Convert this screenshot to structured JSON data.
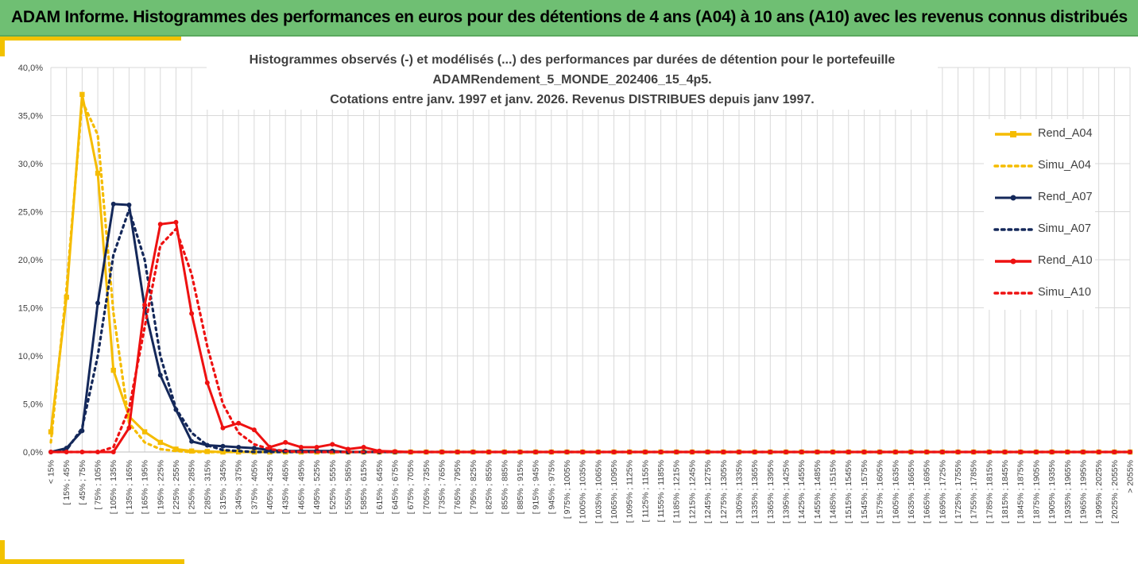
{
  "header": {
    "title": "ADAM Informe. Histogrammes des performances en euros pour des détentions de 4 ans (A04) à 10 ans (A10) avec les revenus connus distribués"
  },
  "colors": {
    "header_bg": "#6fbf73",
    "accent": "#f2c200",
    "A04": "#f5bc00",
    "A07": "#14285a",
    "A10": "#ee1111",
    "grid": "#d9d9d9"
  },
  "chart_data": {
    "type": "line",
    "title_lines": [
      "Histogrammes observés (-) et modélisés (...) des performances par durées de détention pour le portefeuille",
      "ADAMRendement_5_MONDE_202406_15_4p5.",
      "Cotations entre janv. 1997 et janv. 2026. Revenus DISTRIBUES depuis janv 1997."
    ],
    "ylim": [
      0,
      0.4
    ],
    "yticks": [
      "0,0%",
      "5,0%",
      "10,0%",
      "15,0%",
      "20,0%",
      "25,0%",
      "30,0%",
      "35,0%",
      "40,0%"
    ],
    "grid": true,
    "legend_position": "right",
    "categories": [
      "< 15%",
      "[ 15% ; 45%",
      "[ 45% ; 75%",
      "[ 75% ; 105%",
      "[ 105% ; 135%",
      "[ 135% ; 165%",
      "[ 165% ; 195%",
      "[ 195% ; 225%",
      "[ 225% ; 255%",
      "[ 255% ; 285%",
      "[ 285% ; 315%",
      "[ 315% ; 345%",
      "[ 345% ; 375%",
      "[ 375% ; 405%",
      "[ 405% ; 435%",
      "[ 435% ; 465%",
      "[ 465% ; 495%",
      "[ 495% ; 525%",
      "[ 525% ; 555%",
      "[ 555% ; 585%",
      "[ 585% ; 615%",
      "[ 615% ; 645%",
      "[ 645% ; 675%",
      "[ 675% ; 705%",
      "[ 705% ; 735%",
      "[ 735% ; 765%",
      "[ 765% ; 795%",
      "[ 795% ; 825%",
      "[ 825% ; 855%",
      "[ 855% ; 885%",
      "[ 885% ; 915%",
      "[ 915% ; 945%",
      "[ 945% ; 975%",
      "[ 975% ; 1005%",
      "[ 1005% ; 1035%",
      "[ 1035% ; 1065%",
      "[ 1065% ; 1095%",
      "[ 1095% ; 1125%",
      "[ 1125% ; 1155%",
      "[ 1155% ; 1185%",
      "[ 1185% ; 1215%",
      "[ 1215% ; 1245%",
      "[ 1245% ; 1275%",
      "[ 1275% ; 1305%",
      "[ 1305% ; 1335%",
      "[ 1335% ; 1365%",
      "[ 1365% ; 1395%",
      "[ 1395% ; 1425%",
      "[ 1425% ; 1455%",
      "[ 1455% ; 1485%",
      "[ 1485% ; 1515%",
      "[ 1515% ; 1545%",
      "[ 1545% ; 1575%",
      "[ 1575% ; 1605%",
      "[ 1605% ; 1635%",
      "[ 1635% ; 1665%",
      "[ 1665% ; 1695%",
      "[ 1695% ; 1725%",
      "[ 1725% ; 1755%",
      "[ 1755% ; 1785%",
      "[ 1785% ; 1815%",
      "[ 1815% ; 1845%",
      "[ 1845% ; 1875%",
      "[ 1875% ; 1905%",
      "[ 1905% ; 1935%",
      "[ 1935% ; 1965%",
      "[ 1965% ; 1995%",
      "[ 1995% ; 2025%",
      "[ 2025% ; 2055%",
      "> 2055%"
    ],
    "series": [
      {
        "name": "Rend_A04",
        "style": "solid",
        "marker": "square",
        "color": "#f5bc00",
        "values": [
          0.021,
          0.161,
          0.372,
          0.29,
          0.085,
          0.037,
          0.021,
          0.01,
          0.003,
          0.001,
          0.0005,
          0,
          0,
          0,
          0,
          0,
          0,
          0,
          0,
          0,
          0,
          0,
          0,
          0,
          0,
          0,
          0,
          0,
          0,
          0,
          0,
          0,
          0,
          0,
          0,
          0,
          0,
          0,
          0,
          0,
          0,
          0,
          0,
          0,
          0,
          0,
          0,
          0,
          0,
          0,
          0,
          0,
          0,
          0,
          0,
          0,
          0,
          0,
          0,
          0,
          0,
          0,
          0,
          0,
          0,
          0,
          0,
          0,
          0,
          0
        ]
      },
      {
        "name": "Simu_A04",
        "style": "dotted",
        "marker": "none",
        "color": "#f5bc00",
        "values": [
          0.01,
          0.17,
          0.365,
          0.33,
          0.145,
          0.03,
          0.01,
          0.003,
          0.001,
          0,
          0,
          0,
          0,
          0,
          0,
          0,
          0,
          0,
          0,
          0,
          0,
          0,
          0,
          0,
          0,
          0,
          0,
          0,
          0,
          0,
          0,
          0,
          0,
          0,
          0,
          0,
          0,
          0,
          0,
          0,
          0,
          0,
          0,
          0,
          0,
          0,
          0,
          0,
          0,
          0,
          0,
          0,
          0,
          0,
          0,
          0,
          0,
          0,
          0,
          0,
          0,
          0,
          0,
          0,
          0,
          0,
          0,
          0,
          0,
          0
        ]
      },
      {
        "name": "Rend_A07",
        "style": "solid",
        "marker": "circle",
        "color": "#14285a",
        "values": [
          0,
          0.004,
          0.022,
          0.155,
          0.258,
          0.257,
          0.15,
          0.08,
          0.044,
          0.011,
          0.007,
          0.006,
          0.005,
          0.004,
          0.002,
          0.001,
          0.001,
          0.001,
          0.001,
          0,
          0,
          0,
          0,
          0,
          0,
          0,
          0,
          0,
          0,
          0,
          0,
          0,
          0,
          0,
          0,
          0,
          0,
          0,
          0,
          0,
          0,
          0,
          0,
          0,
          0,
          0,
          0,
          0,
          0,
          0,
          0,
          0,
          0,
          0,
          0,
          0,
          0,
          0,
          0,
          0,
          0,
          0,
          0,
          0,
          0,
          0,
          0,
          0,
          0,
          0
        ]
      },
      {
        "name": "Simu_A07",
        "style": "dotted",
        "marker": "none",
        "color": "#14285a",
        "values": [
          0,
          0.002,
          0.025,
          0.1,
          0.205,
          0.252,
          0.2,
          0.1,
          0.045,
          0.02,
          0.007,
          0.002,
          0.001,
          0,
          0,
          0,
          0,
          0,
          0,
          0,
          0,
          0,
          0,
          0,
          0,
          0,
          0,
          0,
          0,
          0,
          0,
          0,
          0,
          0,
          0,
          0,
          0,
          0,
          0,
          0,
          0,
          0,
          0,
          0,
          0,
          0,
          0,
          0,
          0,
          0,
          0,
          0,
          0,
          0,
          0,
          0,
          0,
          0,
          0,
          0,
          0,
          0,
          0,
          0,
          0,
          0,
          0,
          0,
          0,
          0
        ]
      },
      {
        "name": "Rend_A10",
        "style": "solid",
        "marker": "circle",
        "color": "#ee1111",
        "values": [
          0,
          0,
          0,
          0,
          0,
          0.025,
          0.153,
          0.237,
          0.239,
          0.144,
          0.072,
          0.025,
          0.03,
          0.023,
          0.005,
          0.01,
          0.005,
          0.005,
          0.008,
          0.003,
          0.005,
          0.001,
          0.0005,
          0,
          0,
          0,
          0,
          0,
          0,
          0,
          0,
          0,
          0,
          0,
          0,
          0,
          0,
          0,
          0,
          0,
          0,
          0,
          0,
          0,
          0,
          0,
          0,
          0,
          0,
          0,
          0,
          0,
          0,
          0,
          0,
          0,
          0,
          0,
          0,
          0,
          0,
          0,
          0,
          0,
          0,
          0,
          0,
          0,
          0,
          0
        ]
      },
      {
        "name": "Simu_A10",
        "style": "dotted",
        "marker": "none",
        "color": "#ee1111",
        "values": [
          0,
          0,
          0,
          0,
          0.005,
          0.045,
          0.13,
          0.215,
          0.232,
          0.185,
          0.11,
          0.05,
          0.02,
          0.008,
          0.003,
          0.001,
          0,
          0,
          0,
          0,
          0,
          0,
          0,
          0,
          0,
          0,
          0,
          0,
          0,
          0,
          0,
          0,
          0,
          0,
          0,
          0,
          0,
          0,
          0,
          0,
          0,
          0,
          0,
          0,
          0,
          0,
          0,
          0,
          0,
          0,
          0,
          0,
          0,
          0,
          0,
          0,
          0,
          0,
          0,
          0,
          0,
          0,
          0,
          0,
          0,
          0,
          0,
          0,
          0,
          0
        ]
      }
    ]
  }
}
